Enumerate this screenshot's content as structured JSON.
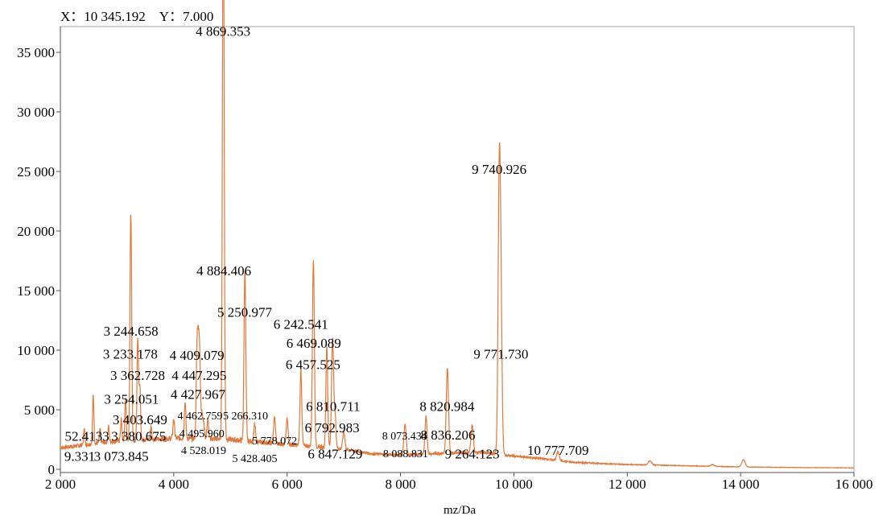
{
  "cursor_readout": {
    "x_label": "X",
    "x_value": "10 345.192",
    "y_label": "Y",
    "y_value": "7.000"
  },
  "chart_data": {
    "type": "line",
    "title": "",
    "xlabel": "mz/Da",
    "ylabel": "",
    "xlim": [
      2000,
      16000
    ],
    "ylim": [
      0,
      36500
    ],
    "grid": false,
    "x_ticks": [
      {
        "value": 2000,
        "label": "2 000"
      },
      {
        "value": 4000,
        "label": "4 000"
      },
      {
        "value": 6000,
        "label": "6 000"
      },
      {
        "value": 8000,
        "label": "8 000"
      },
      {
        "value": 10000,
        "label": "10 000"
      },
      {
        "value": 12000,
        "label": "12 000"
      },
      {
        "value": 14000,
        "label": "14 000"
      },
      {
        "value": 16000,
        "label": "16 000"
      }
    ],
    "y_ticks": [
      {
        "value": 0,
        "label": "0"
      },
      {
        "value": 5000,
        "label": "5 000"
      },
      {
        "value": 10000,
        "label": "10 000"
      },
      {
        "value": 15000,
        "label": "15 000"
      },
      {
        "value": 20000,
        "label": "20 000"
      },
      {
        "value": 25000,
        "label": "25 000"
      },
      {
        "value": 30000,
        "label": "30 000"
      },
      {
        "value": 35000,
        "label": "35 000"
      }
    ],
    "colors": {
      "spectrum": "#e07a3c",
      "frame": "#a0a0a0",
      "axis": "#555555"
    },
    "baseline": [
      {
        "x": 2000,
        "y": 1800
      },
      {
        "x": 2500,
        "y": 2100
      },
      {
        "x": 3000,
        "y": 2400
      },
      {
        "x": 3500,
        "y": 2500
      },
      {
        "x": 4000,
        "y": 2600
      },
      {
        "x": 4500,
        "y": 2600
      },
      {
        "x": 5000,
        "y": 2500
      },
      {
        "x": 5500,
        "y": 2300
      },
      {
        "x": 6000,
        "y": 2100
      },
      {
        "x": 6500,
        "y": 1900
      },
      {
        "x": 7000,
        "y": 1700
      },
      {
        "x": 7500,
        "y": 1300
      },
      {
        "x": 8000,
        "y": 1200
      },
      {
        "x": 8500,
        "y": 1300
      },
      {
        "x": 9000,
        "y": 1400
      },
      {
        "x": 9500,
        "y": 1400
      },
      {
        "x": 10000,
        "y": 1100
      },
      {
        "x": 10500,
        "y": 900
      },
      {
        "x": 11000,
        "y": 600
      },
      {
        "x": 12000,
        "y": 400
      },
      {
        "x": 13000,
        "y": 300
      },
      {
        "x": 14000,
        "y": 200
      },
      {
        "x": 15000,
        "y": 150
      },
      {
        "x": 16000,
        "y": 120
      }
    ],
    "peaks": [
      {
        "x": 2420,
        "y": 3400,
        "w": 12
      },
      {
        "x": 2580,
        "y": 6200,
        "w": 12
      },
      {
        "x": 2700,
        "y": 3300,
        "w": 12
      },
      {
        "x": 2850,
        "y": 3600,
        "w": 12
      },
      {
        "x": 3073.845,
        "y": 4200,
        "w": 12
      },
      {
        "x": 3150,
        "y": 6000,
        "w": 12
      },
      {
        "x": 3233.178,
        "y": 10800,
        "w": 12
      },
      {
        "x": 3244.658,
        "y": 12100,
        "w": 12
      },
      {
        "x": 3254.051,
        "y": 8000,
        "w": 12
      },
      {
        "x": 3362.728,
        "y": 9900,
        "w": 12
      },
      {
        "x": 3380.675,
        "y": 5200,
        "w": 12
      },
      {
        "x": 3403.649,
        "y": 6500,
        "w": 12
      },
      {
        "x": 3600,
        "y": 3600,
        "w": 12
      },
      {
        "x": 4000,
        "y": 4200,
        "w": 14
      },
      {
        "x": 4200,
        "y": 5600,
        "w": 14
      },
      {
        "x": 4409.079,
        "y": 8800,
        "w": 14
      },
      {
        "x": 4427.967,
        "y": 7300,
        "w": 14
      },
      {
        "x": 4447.295,
        "y": 7900,
        "w": 14
      },
      {
        "x": 4462.759,
        "y": 5800,
        "w": 14
      },
      {
        "x": 4495.96,
        "y": 4700,
        "w": 14
      },
      {
        "x": 4528.019,
        "y": 3800,
        "w": 14
      },
      {
        "x": 4600,
        "y": 4200,
        "w": 14
      },
      {
        "x": 4869.353,
        "y": 35600,
        "w": 14
      },
      {
        "x": 4884.406,
        "y": 21000,
        "w": 14
      },
      {
        "x": 5250.977,
        "y": 13700,
        "w": 14
      },
      {
        "x": 5266.31,
        "y": 7300,
        "w": 14
      },
      {
        "x": 5428.405,
        "y": 3800,
        "w": 14
      },
      {
        "x": 5778.072,
        "y": 4400,
        "w": 16
      },
      {
        "x": 6000,
        "y": 4200,
        "w": 16
      },
      {
        "x": 6242.541,
        "y": 8300,
        "w": 16
      },
      {
        "x": 6457.525,
        "y": 9800,
        "w": 16
      },
      {
        "x": 6469.089,
        "y": 10800,
        "w": 16
      },
      {
        "x": 6700,
        "y": 10300,
        "w": 16
      },
      {
        "x": 6792.983,
        "y": 6900,
        "w": 16
      },
      {
        "x": 6810.711,
        "y": 7300,
        "w": 16
      },
      {
        "x": 6847.129,
        "y": 4400,
        "w": 16
      },
      {
        "x": 7000,
        "y": 3200,
        "w": 18
      },
      {
        "x": 8073.434,
        "y": 2700,
        "w": 18
      },
      {
        "x": 8088.831,
        "y": 2500,
        "w": 18
      },
      {
        "x": 8450,
        "y": 4400,
        "w": 18
      },
      {
        "x": 8820.984,
        "y": 6000,
        "w": 18
      },
      {
        "x": 8836.206,
        "y": 4500,
        "w": 18
      },
      {
        "x": 9264.123,
        "y": 3700,
        "w": 20
      },
      {
        "x": 9740.926,
        "y": 23200,
        "w": 20
      },
      {
        "x": 9771.73,
        "y": 12500,
        "w": 20
      },
      {
        "x": 10777.709,
        "y": 1500,
        "w": 22
      },
      {
        "x": 12400,
        "y": 700,
        "w": 30
      },
      {
        "x": 13500,
        "y": 400,
        "w": 30
      },
      {
        "x": 14050,
        "y": 800,
        "w": 30
      }
    ],
    "annotations": [
      {
        "text": "4 869.353",
        "x": 4869.353,
        "y": 36400,
        "size": "normal"
      },
      {
        "text": "4 884.406",
        "x": 4884.406,
        "y": 16300,
        "size": "normal"
      },
      {
        "text": "5 250.977",
        "x": 5250.977,
        "y": 12800,
        "size": "normal"
      },
      {
        "text": "3 244.658",
        "x": 3244.658,
        "y": 11200,
        "size": "normal"
      },
      {
        "text": "3 233.178",
        "x": 3233.178,
        "y": 9300,
        "size": "normal"
      },
      {
        "text": "3 362.728",
        "x": 3362.728,
        "y": 7500,
        "size": "normal"
      },
      {
        "text": "3 254.051",
        "x": 3254.051,
        "y": 5500,
        "size": "normal"
      },
      {
        "text": "3 403.649",
        "x": 3403.649,
        "y": 3800,
        "size": "normal"
      },
      {
        "text": "3 380.675",
        "x": 3380.675,
        "y": 2400,
        "size": "normal"
      },
      {
        "text": "3 073.845",
        "x": 3073.845,
        "y": 700,
        "size": "normal"
      },
      {
        "text": "52.4133",
        "x": 2470,
        "y": 2400,
        "size": "normal"
      },
      {
        "text": "9.331",
        "x": 2340,
        "y": 700,
        "size": "normal"
      },
      {
        "text": "4 409.079",
        "x": 4409.079,
        "y": 9200,
        "size": "normal"
      },
      {
        "text": "4 447.295",
        "x": 4447.295,
        "y": 7500,
        "size": "normal"
      },
      {
        "text": "4 427.967",
        "x": 4427.967,
        "y": 5900,
        "size": "normal"
      },
      {
        "text": "4 462.759",
        "x": 4462.759,
        "y": 4200,
        "size": "small"
      },
      {
        "text": "5 266.310",
        "x": 5266.31,
        "y": 4200,
        "size": "small"
      },
      {
        "text": "4 495.960",
        "x": 4495.96,
        "y": 2700,
        "size": "small"
      },
      {
        "text": "4 528.019",
        "x": 4528.019,
        "y": 1300,
        "size": "small"
      },
      {
        "text": "5 778.072",
        "x": 5778.072,
        "y": 2100,
        "size": "small"
      },
      {
        "text": "5 428.405",
        "x": 5428.405,
        "y": 600,
        "size": "small"
      },
      {
        "text": "6 242.541",
        "x": 6242.541,
        "y": 11800,
        "size": "normal"
      },
      {
        "text": "6 469.089",
        "x": 6469.089,
        "y": 10200,
        "size": "normal"
      },
      {
        "text": "6 457.525",
        "x": 6457.525,
        "y": 8400,
        "size": "normal"
      },
      {
        "text": "6 810.711",
        "x": 6810.711,
        "y": 4900,
        "size": "normal"
      },
      {
        "text": "6 792.983",
        "x": 6792.983,
        "y": 3100,
        "size": "normal"
      },
      {
        "text": "6 847.129",
        "x": 6847.129,
        "y": 900,
        "size": "normal"
      },
      {
        "text": "8 073.434",
        "x": 8073.434,
        "y": 2500,
        "size": "small"
      },
      {
        "text": "8 088.831",
        "x": 8088.831,
        "y": 1000,
        "size": "small"
      },
      {
        "text": "8 820.984",
        "x": 8820.984,
        "y": 4900,
        "size": "normal"
      },
      {
        "text": "8 836.206",
        "x": 8836.206,
        "y": 2500,
        "size": "normal"
      },
      {
        "text": "9 264.123",
        "x": 9264.123,
        "y": 900,
        "size": "normal"
      },
      {
        "text": "9 740.926",
        "x": 9740.926,
        "y": 24800,
        "size": "normal"
      },
      {
        "text": "9 771.730",
        "x": 9771.73,
        "y": 9300,
        "size": "normal"
      },
      {
        "text": "10 777.709",
        "x": 10777.709,
        "y": 1200,
        "size": "normal"
      }
    ]
  }
}
